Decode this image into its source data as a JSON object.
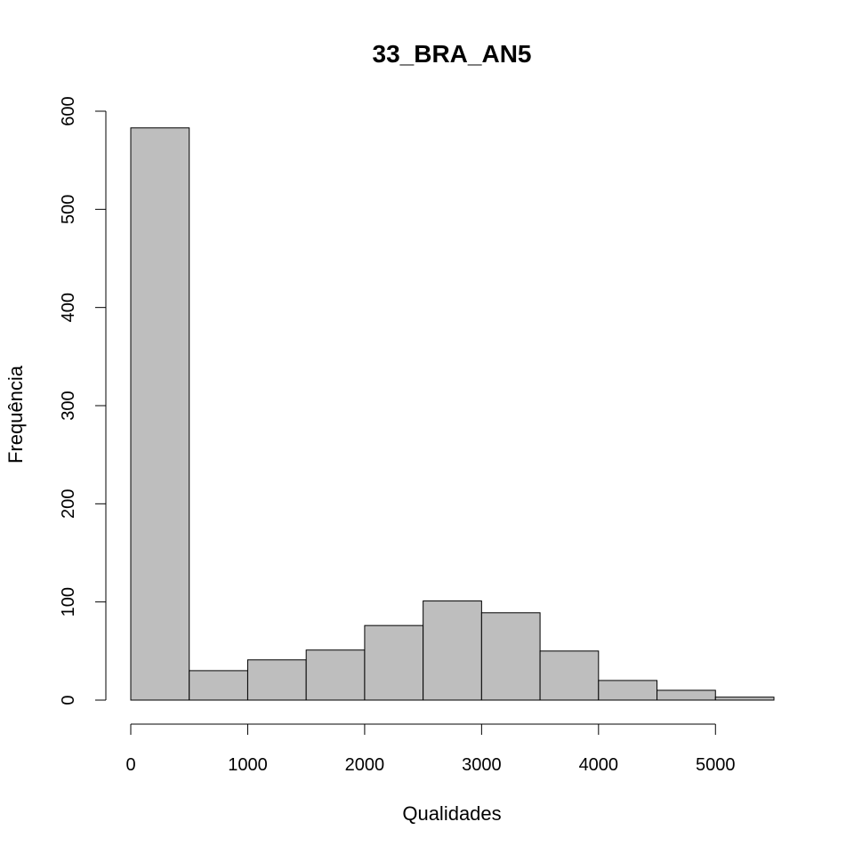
{
  "chart_data": {
    "type": "bar",
    "title": "33_BRA_AN5",
    "xlabel": "Qualidades",
    "ylabel": "Frequência",
    "bin_edges": [
      0,
      500,
      1000,
      1500,
      2000,
      2500,
      3000,
      3500,
      4000,
      4500,
      5000,
      5500
    ],
    "values": [
      583,
      30,
      41,
      51,
      76,
      101,
      89,
      50,
      20,
      10,
      3
    ],
    "xlim": [
      0,
      5500
    ],
    "ylim": [
      0,
      600
    ],
    "x_ticks": [
      0,
      1000,
      2000,
      3000,
      4000,
      5000
    ],
    "y_ticks": [
      0,
      100,
      200,
      300,
      400,
      500,
      600
    ],
    "bar_color": "#bebebe",
    "grid": false
  }
}
